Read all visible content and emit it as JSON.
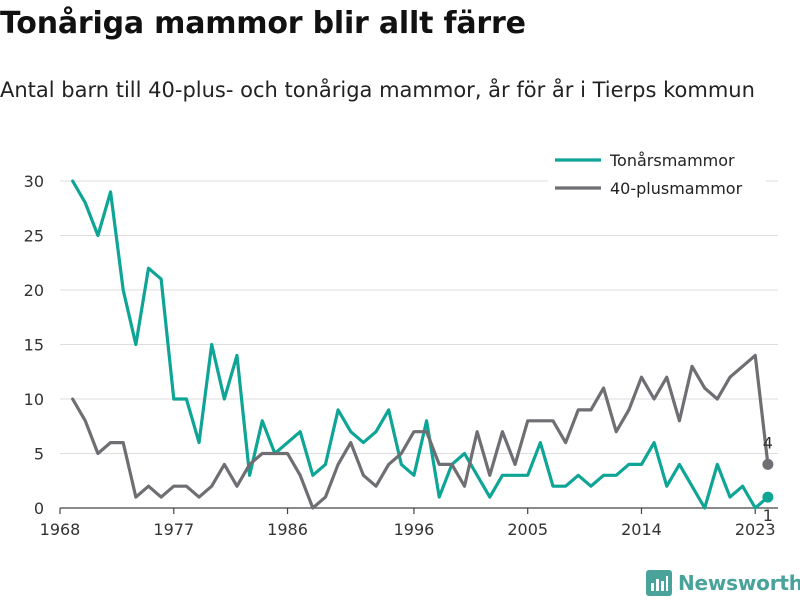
{
  "title": "Tonåriga mammor blir allt färre",
  "subtitle": "Antal barn till 40-plus- och tonåriga mammor, år för år i Tierps kommun",
  "brand": "Newsworthy",
  "colors": {
    "teen": "#0fa596",
    "forty": "#6e6e73",
    "grid": "#dddddd",
    "brand": "#4aa39a"
  },
  "chart_data": {
    "type": "line",
    "title": "Tonåriga mammor blir allt färre",
    "subtitle": "Antal barn till 40-plus- och tonåriga mammor, år för år i Tierps kommun",
    "xlabel": "",
    "ylabel": "",
    "x_ticks": [
      1968,
      1977,
      1986,
      1996,
      2005,
      2014,
      2023
    ],
    "y_ticks": [
      0,
      5,
      10,
      15,
      20,
      25,
      30
    ],
    "xlim": [
      1968,
      2024
    ],
    "ylim": [
      0,
      30
    ],
    "grid": true,
    "legend_position": "top-right",
    "x": [
      1969,
      1970,
      1971,
      1972,
      1973,
      1974,
      1975,
      1976,
      1977,
      1978,
      1979,
      1980,
      1981,
      1982,
      1983,
      1984,
      1985,
      1986,
      1987,
      1988,
      1989,
      1990,
      1991,
      1992,
      1993,
      1994,
      1995,
      1996,
      1997,
      1998,
      1999,
      2000,
      2001,
      2002,
      2003,
      2004,
      2005,
      2006,
      2007,
      2008,
      2009,
      2010,
      2011,
      2012,
      2013,
      2014,
      2015,
      2016,
      2017,
      2018,
      2019,
      2020,
      2021,
      2022,
      2023,
      2024
    ],
    "series": [
      {
        "name": "Tonårsmammor",
        "color": "#0fa596",
        "values": [
          30,
          28,
          25,
          29,
          20,
          15,
          22,
          21,
          10,
          10,
          6,
          15,
          10,
          14,
          3,
          8,
          5,
          6,
          7,
          3,
          4,
          9,
          7,
          6,
          7,
          9,
          4,
          3,
          8,
          1,
          4,
          5,
          3,
          1,
          3,
          3,
          3,
          6,
          2,
          2,
          3,
          2,
          3,
          3,
          4,
          4,
          6,
          2,
          4,
          2,
          0,
          4,
          1,
          2,
          0,
          1
        ],
        "end_label": "1"
      },
      {
        "name": "40-plusmammor",
        "color": "#6e6e73",
        "values": [
          10,
          8,
          5,
          6,
          6,
          1,
          2,
          1,
          2,
          2,
          1,
          2,
          4,
          2,
          4,
          5,
          5,
          5,
          3,
          0,
          1,
          4,
          6,
          3,
          2,
          4,
          5,
          7,
          7,
          4,
          4,
          2,
          7,
          3,
          7,
          4,
          8,
          8,
          8,
          6,
          9,
          9,
          11,
          7,
          9,
          12,
          10,
          12,
          8,
          13,
          11,
          10,
          12,
          13,
          14,
          4
        ],
        "end_label": "4"
      }
    ]
  }
}
